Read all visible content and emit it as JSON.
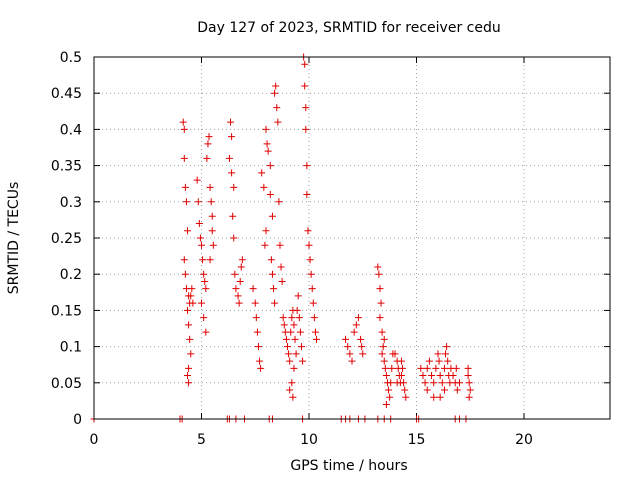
{
  "chart_data": {
    "type": "scatter",
    "title": "Day 127 of 2023, SRMTID for receiver cedu",
    "xlabel": "GPS time / hours",
    "ylabel": "SRMTID / TECUs",
    "xlim": [
      0,
      24
    ],
    "ylim": [
      0,
      0.5
    ],
    "x_ticks": [
      0,
      5,
      10,
      15,
      20
    ],
    "x_tick_labels": [
      "0",
      "5",
      "10",
      "15",
      "20"
    ],
    "y_ticks": [
      0,
      0.05,
      0.1,
      0.15,
      0.2,
      0.25,
      0.3,
      0.35,
      0.4,
      0.45,
      0.5
    ],
    "y_tick_labels": [
      "0",
      "0.05",
      "0.1",
      "0.15",
      "0.2",
      "0.25",
      "0.3",
      "0.35",
      "0.4",
      "0.45",
      "0.5"
    ],
    "grid": true,
    "marker": "plus",
    "colors": {
      "marker": "#e00000",
      "grid": "#a0a0a0",
      "axis": "#000000"
    },
    "series": [
      {
        "name": "SRMTID",
        "points": [
          [
            0.0,
            0.0
          ],
          [
            4.0,
            0.0
          ],
          [
            4.1,
            0.0
          ],
          [
            4.15,
            0.41
          ],
          [
            4.2,
            0.4
          ],
          [
            4.2,
            0.36
          ],
          [
            4.25,
            0.32
          ],
          [
            4.3,
            0.3
          ],
          [
            4.35,
            0.26
          ],
          [
            4.2,
            0.22
          ],
          [
            4.25,
            0.2
          ],
          [
            4.3,
            0.18
          ],
          [
            4.4,
            0.17
          ],
          [
            4.45,
            0.16
          ],
          [
            4.5,
            0.17
          ],
          [
            4.55,
            0.18
          ],
          [
            4.6,
            0.16
          ],
          [
            4.35,
            0.15
          ],
          [
            4.4,
            0.13
          ],
          [
            4.45,
            0.11
          ],
          [
            4.5,
            0.09
          ],
          [
            4.4,
            0.07
          ],
          [
            4.35,
            0.06
          ],
          [
            4.4,
            0.05
          ],
          [
            4.8,
            0.33
          ],
          [
            4.85,
            0.3
          ],
          [
            4.9,
            0.27
          ],
          [
            4.95,
            0.25
          ],
          [
            5.0,
            0.24
          ],
          [
            5.05,
            0.22
          ],
          [
            5.1,
            0.2
          ],
          [
            5.15,
            0.19
          ],
          [
            5.2,
            0.18
          ],
          [
            5.0,
            0.16
          ],
          [
            5.1,
            0.14
          ],
          [
            5.2,
            0.12
          ],
          [
            5.25,
            0.36
          ],
          [
            5.3,
            0.38
          ],
          [
            5.35,
            0.39
          ],
          [
            5.4,
            0.32
          ],
          [
            5.45,
            0.3
          ],
          [
            5.5,
            0.28
          ],
          [
            5.5,
            0.26
          ],
          [
            5.55,
            0.24
          ],
          [
            5.4,
            0.22
          ],
          [
            6.2,
            0.0
          ],
          [
            6.3,
            0.0
          ],
          [
            6.35,
            0.41
          ],
          [
            6.4,
            0.39
          ],
          [
            6.3,
            0.36
          ],
          [
            6.4,
            0.34
          ],
          [
            6.5,
            0.32
          ],
          [
            6.45,
            0.28
          ],
          [
            6.5,
            0.25
          ],
          [
            6.55,
            0.2
          ],
          [
            6.6,
            0.18
          ],
          [
            6.7,
            0.17
          ],
          [
            6.8,
            0.19
          ],
          [
            6.85,
            0.21
          ],
          [
            6.9,
            0.22
          ],
          [
            6.75,
            0.16
          ],
          [
            6.6,
            0.0
          ],
          [
            7.0,
            0.0
          ],
          [
            7.4,
            0.18
          ],
          [
            7.5,
            0.16
          ],
          [
            7.55,
            0.14
          ],
          [
            7.6,
            0.12
          ],
          [
            7.65,
            0.1
          ],
          [
            7.7,
            0.08
          ],
          [
            7.75,
            0.07
          ],
          [
            7.8,
            0.34
          ],
          [
            7.9,
            0.32
          ],
          [
            8.0,
            0.26
          ],
          [
            7.95,
            0.24
          ],
          [
            8.0,
            0.4
          ],
          [
            8.05,
            0.38
          ],
          [
            8.1,
            0.37
          ],
          [
            8.2,
            0.35
          ],
          [
            8.2,
            0.31
          ],
          [
            8.3,
            0.28
          ],
          [
            8.25,
            0.22
          ],
          [
            8.3,
            0.2
          ],
          [
            8.35,
            0.18
          ],
          [
            8.4,
            0.16
          ],
          [
            8.15,
            0.0
          ],
          [
            8.3,
            0.0
          ],
          [
            8.4,
            0.45
          ],
          [
            8.45,
            0.46
          ],
          [
            8.5,
            0.43
          ],
          [
            8.55,
            0.41
          ],
          [
            8.6,
            0.3
          ],
          [
            8.65,
            0.24
          ],
          [
            8.7,
            0.21
          ],
          [
            8.75,
            0.19
          ],
          [
            8.8,
            0.14
          ],
          [
            8.85,
            0.13
          ],
          [
            8.9,
            0.12
          ],
          [
            8.95,
            0.11
          ],
          [
            9.0,
            0.1
          ],
          [
            9.05,
            0.09
          ],
          [
            9.1,
            0.08
          ],
          [
            9.15,
            0.12
          ],
          [
            9.2,
            0.14
          ],
          [
            9.25,
            0.15
          ],
          [
            9.3,
            0.13
          ],
          [
            9.35,
            0.11
          ],
          [
            9.4,
            0.09
          ],
          [
            9.3,
            0.07
          ],
          [
            9.2,
            0.05
          ],
          [
            9.1,
            0.04
          ],
          [
            9.25,
            0.03
          ],
          [
            9.45,
            0.15
          ],
          [
            9.5,
            0.17
          ],
          [
            9.55,
            0.14
          ],
          [
            9.6,
            0.12
          ],
          [
            9.65,
            0.1
          ],
          [
            9.7,
            0.08
          ],
          [
            9.75,
            0.5
          ],
          [
            9.8,
            0.49
          ],
          [
            9.8,
            0.46
          ],
          [
            9.85,
            0.43
          ],
          [
            9.85,
            0.4
          ],
          [
            9.9,
            0.35
          ],
          [
            9.9,
            0.31
          ],
          [
            9.95,
            0.26
          ],
          [
            10.0,
            0.24
          ],
          [
            10.05,
            0.22
          ],
          [
            10.1,
            0.2
          ],
          [
            10.15,
            0.18
          ],
          [
            10.2,
            0.16
          ],
          [
            10.25,
            0.14
          ],
          [
            10.3,
            0.12
          ],
          [
            10.35,
            0.11
          ],
          [
            9.7,
            0.0
          ],
          [
            11.5,
            0.0
          ],
          [
            11.7,
            0.0
          ],
          [
            11.9,
            0.0
          ],
          [
            11.7,
            0.11
          ],
          [
            11.8,
            0.1
          ],
          [
            11.9,
            0.09
          ],
          [
            12.0,
            0.08
          ],
          [
            12.1,
            0.12
          ],
          [
            12.2,
            0.13
          ],
          [
            12.3,
            0.14
          ],
          [
            12.4,
            0.11
          ],
          [
            12.45,
            0.1
          ],
          [
            12.5,
            0.09
          ],
          [
            12.3,
            0.0
          ],
          [
            12.6,
            0.0
          ],
          [
            13.2,
            0.21
          ],
          [
            13.25,
            0.2
          ],
          [
            13.3,
            0.18
          ],
          [
            13.35,
            0.16
          ],
          [
            13.3,
            0.14
          ],
          [
            13.4,
            0.12
          ],
          [
            13.45,
            0.1
          ],
          [
            13.5,
            0.08
          ],
          [
            13.55,
            0.07
          ],
          [
            13.6,
            0.06
          ],
          [
            13.65,
            0.05
          ],
          [
            13.7,
            0.04
          ],
          [
            13.75,
            0.03
          ],
          [
            13.8,
            0.05
          ],
          [
            13.85,
            0.07
          ],
          [
            13.9,
            0.09
          ],
          [
            13.6,
            0.02
          ],
          [
            13.4,
            0.09
          ],
          [
            13.5,
            0.11
          ],
          [
            13.2,
            0.0
          ],
          [
            13.5,
            0.0
          ],
          [
            13.8,
            0.0
          ],
          [
            14.0,
            0.09
          ],
          [
            14.1,
            0.08
          ],
          [
            14.15,
            0.07
          ],
          [
            14.2,
            0.06
          ],
          [
            14.25,
            0.05
          ],
          [
            14.3,
            0.06
          ],
          [
            14.35,
            0.07
          ],
          [
            14.4,
            0.05
          ],
          [
            14.45,
            0.04
          ],
          [
            14.5,
            0.03
          ],
          [
            14.3,
            0.08
          ],
          [
            14.1,
            0.05
          ],
          [
            15.0,
            0.0
          ],
          [
            15.1,
            0.0
          ],
          [
            15.2,
            0.07
          ],
          [
            15.3,
            0.06
          ],
          [
            15.4,
            0.05
          ],
          [
            15.5,
            0.07
          ],
          [
            15.6,
            0.08
          ],
          [
            15.7,
            0.06
          ],
          [
            15.8,
            0.05
          ],
          [
            15.9,
            0.07
          ],
          [
            16.0,
            0.09
          ],
          [
            16.05,
            0.08
          ],
          [
            16.1,
            0.06
          ],
          [
            16.2,
            0.05
          ],
          [
            16.3,
            0.07
          ],
          [
            16.35,
            0.09
          ],
          [
            16.4,
            0.1
          ],
          [
            16.45,
            0.08
          ],
          [
            16.5,
            0.06
          ],
          [
            16.55,
            0.05
          ],
          [
            16.6,
            0.07
          ],
          [
            15.5,
            0.04
          ],
          [
            15.8,
            0.03
          ],
          [
            16.1,
            0.03
          ],
          [
            16.3,
            0.04
          ],
          [
            16.7,
            0.06
          ],
          [
            16.8,
            0.05
          ],
          [
            16.85,
            0.07
          ],
          [
            16.9,
            0.04
          ],
          [
            17.0,
            0.05
          ],
          [
            16.8,
            0.0
          ],
          [
            17.0,
            0.0
          ],
          [
            17.3,
            0.0
          ],
          [
            17.4,
            0.06
          ],
          [
            17.45,
            0.05
          ],
          [
            17.5,
            0.04
          ],
          [
            17.45,
            0.03
          ],
          [
            17.4,
            0.07
          ]
        ]
      }
    ]
  }
}
